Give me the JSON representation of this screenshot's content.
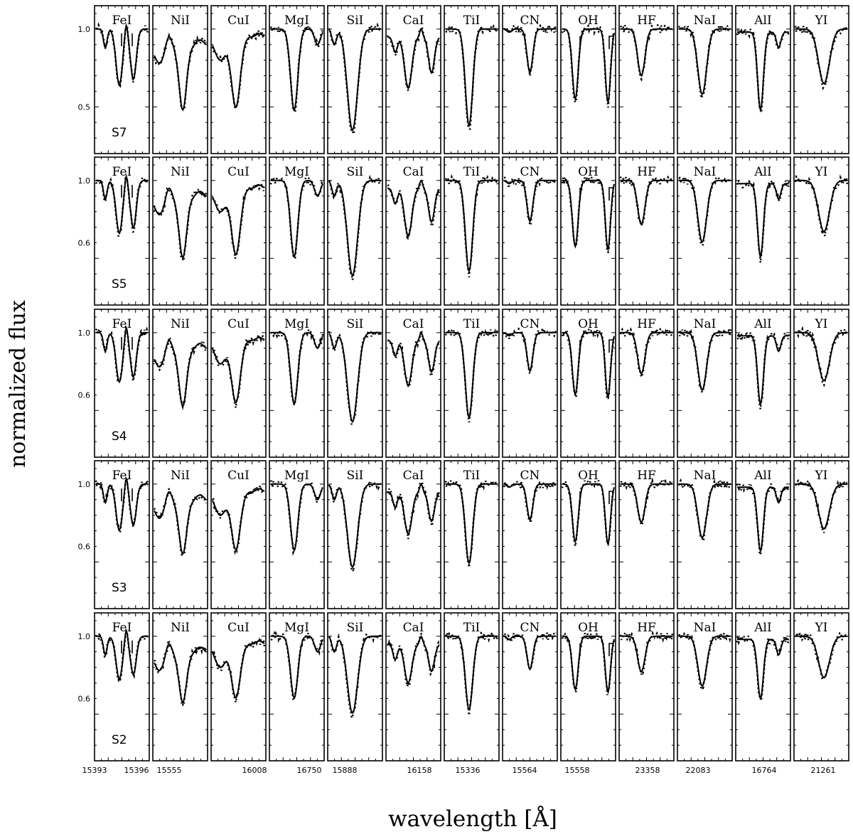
{
  "chart_data": {
    "type": "line",
    "xlabel": "wavelength [Å]",
    "ylabel": "normalized flux",
    "panels": [
      "FeI",
      "NiI",
      "CuI",
      "MgI",
      "SiI",
      "CaI",
      "TiI",
      "CN",
      "OH",
      "HF",
      "NaI",
      "AlI",
      "YI"
    ],
    "rows": [
      {
        "star": "S7",
        "yticks": [
          "1.0",
          "0.5"
        ]
      },
      {
        "star": "S5",
        "yticks": [
          "1.0",
          "0.6"
        ]
      },
      {
        "star": "S4",
        "yticks": [
          "1.0",
          "0.6"
        ]
      },
      {
        "star": "S3",
        "yticks": [
          "1.0",
          "0.6"
        ]
      },
      {
        "star": "S2",
        "yticks": [
          "1.0",
          "0.6"
        ]
      }
    ],
    "xtick_labels": [
      "15393",
      "15396",
      "15555",
      "16008",
      "16750",
      "15888",
      "16158",
      "15336",
      "15564",
      "15558",
      "23358",
      "22083",
      "16764",
      "21261"
    ],
    "series": [
      {
        "name": "",
        "style": "solid"
      },
      {
        "name": "",
        "style": "dotted"
      }
    ],
    "ylim": [
      0.2,
      1.15
    ],
    "profiles": {
      "FeI": {
        "depth": 0.36,
        "continuum": 1.0
      },
      "NiI": {
        "depth": 0.4,
        "continuum": 1.0
      },
      "CuI": {
        "depth": 0.45,
        "continuum": 1.0
      },
      "MgI": {
        "depth": 0.52,
        "continuum": 1.0
      },
      "SiI": {
        "depth": 0.65,
        "continuum": 1.0
      },
      "CaI": {
        "depth": 0.33,
        "continuum": 1.0
      },
      "TiI": {
        "depth": 0.62,
        "continuum": 1.0
      },
      "CN": {
        "depth": 0.28,
        "continuum": 1.0
      },
      "OH": {
        "depth": 0.45,
        "continuum": 1.0
      },
      "HF": {
        "depth": 0.3,
        "continuum": 1.0
      },
      "NaI": {
        "depth": 0.42,
        "continuum": 1.0
      },
      "AlI": {
        "depth": 0.5,
        "continuum": 1.0
      },
      "YI": {
        "depth": 0.35,
        "continuum": 1.0
      }
    }
  }
}
